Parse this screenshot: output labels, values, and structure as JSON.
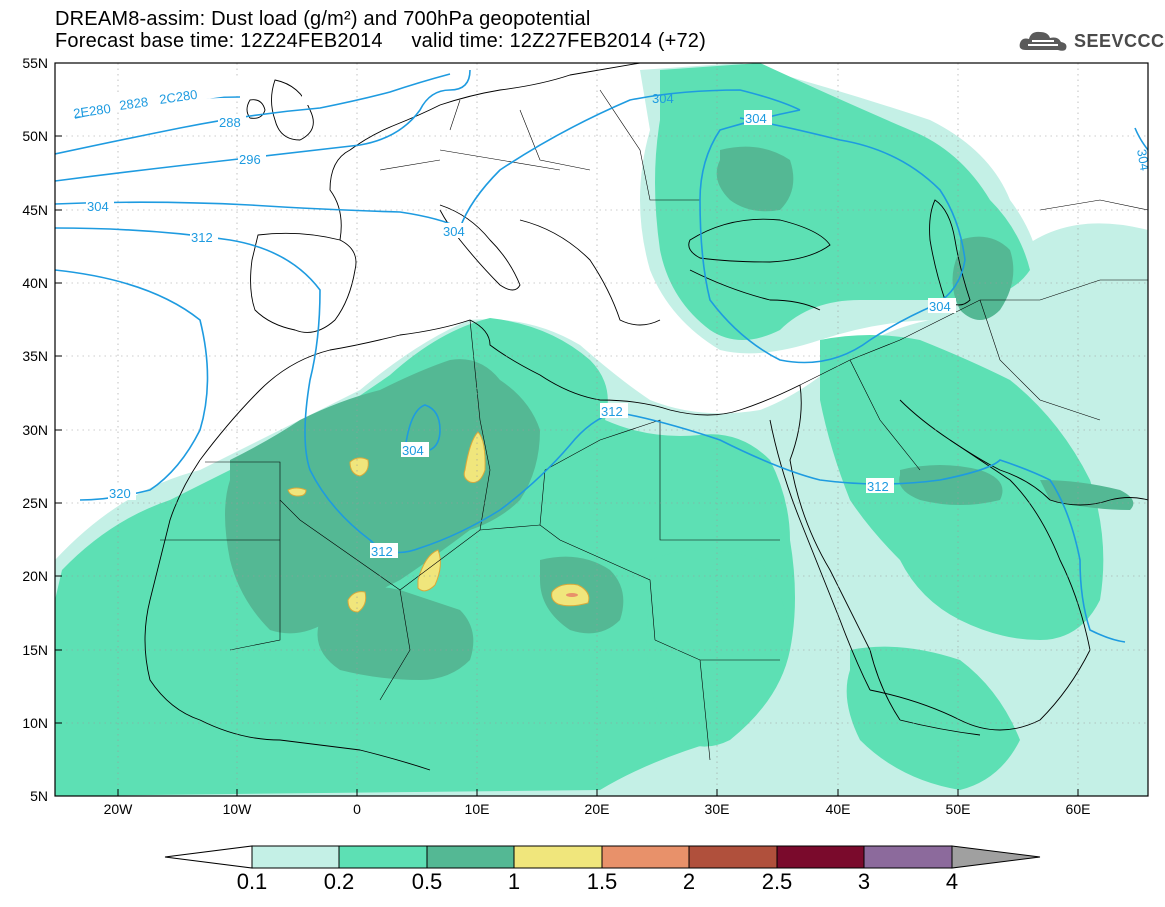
{
  "title": {
    "line1": "DREAM8-assim: Dust load (g/m²) and 700hPa geopotential",
    "line2": "Forecast base time: 12Z24FEB2014     valid time: 12Z27FEB2014 (+72)"
  },
  "logo": {
    "text": "SEEVCCC",
    "icon": "cloud-icon"
  },
  "lat_labels": [
    "55N",
    "50N",
    "45N",
    "40N",
    "35N",
    "30N",
    "25N",
    "20N",
    "15N",
    "10N",
    "5N"
  ],
  "lon_labels": [
    "20W",
    "10W",
    "0",
    "10E",
    "20E",
    "30E",
    "40E",
    "50E",
    "60E"
  ],
  "contour_labels": [
    "2E280",
    "2828",
    "2C280",
    "288",
    "296",
    "304",
    "312",
    "320",
    "304",
    "304",
    "304",
    "312",
    "312",
    "312",
    "304",
    "304",
    "304"
  ],
  "colorbar": {
    "levels": [
      "0.1",
      "0.2",
      "0.5",
      "1",
      "1.5",
      "2",
      "2.5",
      "3",
      "4"
    ],
    "colors": [
      "#c4f0e6",
      "#5de0b4",
      "#54b894",
      "#f0e67c",
      "#e8916a",
      "#b0503c",
      "#7a0a2c",
      "#8c6a9c",
      "#a0a0a0"
    ]
  },
  "contour_color": "#1e9be0"
}
